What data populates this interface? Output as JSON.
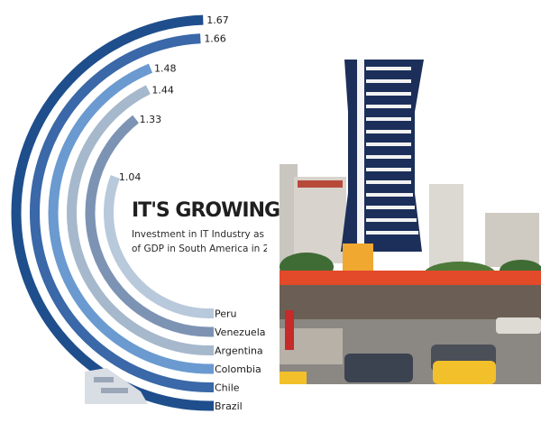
{
  "chart_data": {
    "type": "bar",
    "title": "IT'S GROWING",
    "subtitle_lines": [
      "Investment in IT Industry as a %",
      "of GDP in South America in 201"
    ],
    "categories": [
      "Brazil",
      "Chile",
      "Colombia",
      "Argentina",
      "Venezuela",
      "Peru"
    ],
    "values": [
      1.67,
      1.66,
      1.48,
      1.44,
      1.33,
      1.04
    ],
    "value_labels": [
      "1.67",
      "1.66",
      "1.48",
      "1.44",
      "1.33",
      "1.04"
    ],
    "colors": [
      "#1f4e8c",
      "#3a68a8",
      "#6a9ad0",
      "#a6b8cc",
      "#7d93b4",
      "#b9c9dc"
    ],
    "ylim": [
      0,
      1.67
    ]
  },
  "photo": {
    "sky_color": "#ffffff",
    "tower_color": "#1c2f5a",
    "sign_color": "#f0a830",
    "awning_color": "#e24a2a",
    "road_color": "#8b8782"
  }
}
